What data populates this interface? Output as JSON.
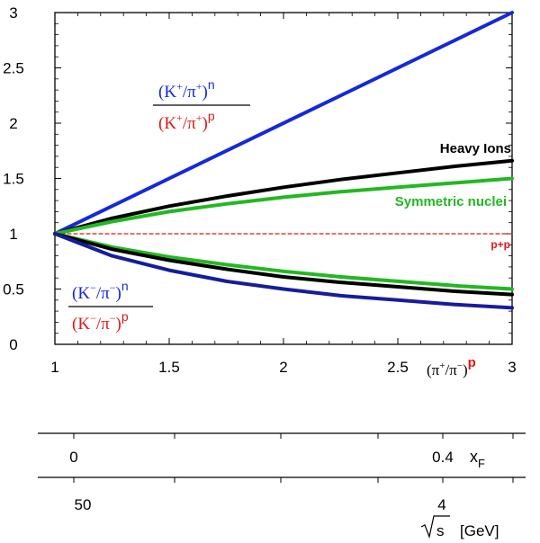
{
  "chart_data": {
    "type": "line",
    "xlim": [
      1,
      3
    ],
    "ylim": [
      0,
      3
    ],
    "x_ticks": [
      "1",
      "1.5",
      "2",
      "2.5",
      "3"
    ],
    "y_ticks": [
      "0",
      "0.5",
      "1",
      "1.5",
      "2",
      "2.5",
      "3"
    ],
    "x_axis_label": "(π⁺/π⁻)ᵖ",
    "x_axis_label_parts": {
      "base": "(π",
      "sup1": "+",
      "mid": "/π",
      "sup2": "−",
      "close": ")",
      "superscript": "p"
    },
    "series": [
      {
        "name": "(K⁺/π⁺)ⁿ / (K⁺/π⁺)ᵖ",
        "color": "#1428dc",
        "x": [
          1,
          3
        ],
        "y": [
          1,
          3
        ]
      },
      {
        "name": "Heavy Ions",
        "color": "#000000",
        "x": [
          1,
          1.25,
          1.5,
          1.75,
          2,
          2.25,
          2.5,
          2.75,
          3
        ],
        "y": [
          1,
          1.14,
          1.25,
          1.34,
          1.42,
          1.49,
          1.55,
          1.61,
          1.66
        ]
      },
      {
        "name": "Symmetric nuclei",
        "color": "#22b822",
        "x": [
          1,
          1.25,
          1.5,
          1.75,
          2,
          2.25,
          2.5,
          2.75,
          3
        ],
        "y": [
          1,
          1.11,
          1.2,
          1.27,
          1.33,
          1.38,
          1.42,
          1.46,
          1.5
        ]
      },
      {
        "name": "p+p",
        "color": "#e01818",
        "dashed": true,
        "x": [
          1,
          3
        ],
        "y": [
          1,
          1
        ]
      },
      {
        "name": "Symmetric nuclei (K⁻)",
        "color": "#22b822",
        "x": [
          1,
          1.25,
          1.5,
          1.75,
          2,
          2.25,
          2.5,
          2.75,
          3
        ],
        "y": [
          1,
          0.88,
          0.79,
          0.72,
          0.66,
          0.61,
          0.57,
          0.53,
          0.5
        ]
      },
      {
        "name": "Heavy Ions (K⁻)",
        "color": "#000000",
        "x": [
          1,
          1.25,
          1.5,
          1.75,
          2,
          2.25,
          2.5,
          2.75,
          3
        ],
        "y": [
          1,
          0.86,
          0.76,
          0.68,
          0.61,
          0.56,
          0.52,
          0.48,
          0.45
        ]
      },
      {
        "name": "(K⁻/π⁻)ⁿ / (K⁻/π⁻)ᵖ",
        "color": "#141e9c",
        "x": [
          1,
          1.25,
          1.5,
          1.75,
          2,
          2.25,
          2.5,
          2.75,
          3
        ],
        "y": [
          1,
          0.8,
          0.67,
          0.57,
          0.5,
          0.44,
          0.4,
          0.36,
          0.33
        ]
      }
    ],
    "labels": {
      "heavy_ions": "Heavy Ions",
      "symmetric": "Symmetric nuclei",
      "pp": "p+p"
    },
    "top_fraction": {
      "num_base": "(K",
      "num_sup1": "+",
      "num_mid": "/π",
      "num_sup2": "+",
      "num_close": ")",
      "num_exp": "n",
      "den_base": "(K",
      "den_sup1": "+",
      "den_mid": "/π",
      "den_sup2": "+",
      "den_close": ")",
      "den_exp": "p"
    },
    "bottom_fraction": {
      "num_base": "(K",
      "num_sup1": "−",
      "num_mid": "/π",
      "num_sup2": "−",
      "num_close": ")",
      "num_exp": "n",
      "den_base": "(K",
      "den_sup1": "−",
      "den_mid": "/π",
      "den_sup2": "−",
      "den_close": ")",
      "den_exp": "p"
    },
    "secondary_axes": [
      {
        "name": "xF",
        "label": "x",
        "label_sub": "F",
        "tick_labels": [
          "0",
          "0.4"
        ]
      },
      {
        "name": "sqrt_s",
        "label_radical": "s",
        "label_unit": "[GeV]",
        "tick_labels": [
          "50",
          "4"
        ]
      }
    ]
  }
}
